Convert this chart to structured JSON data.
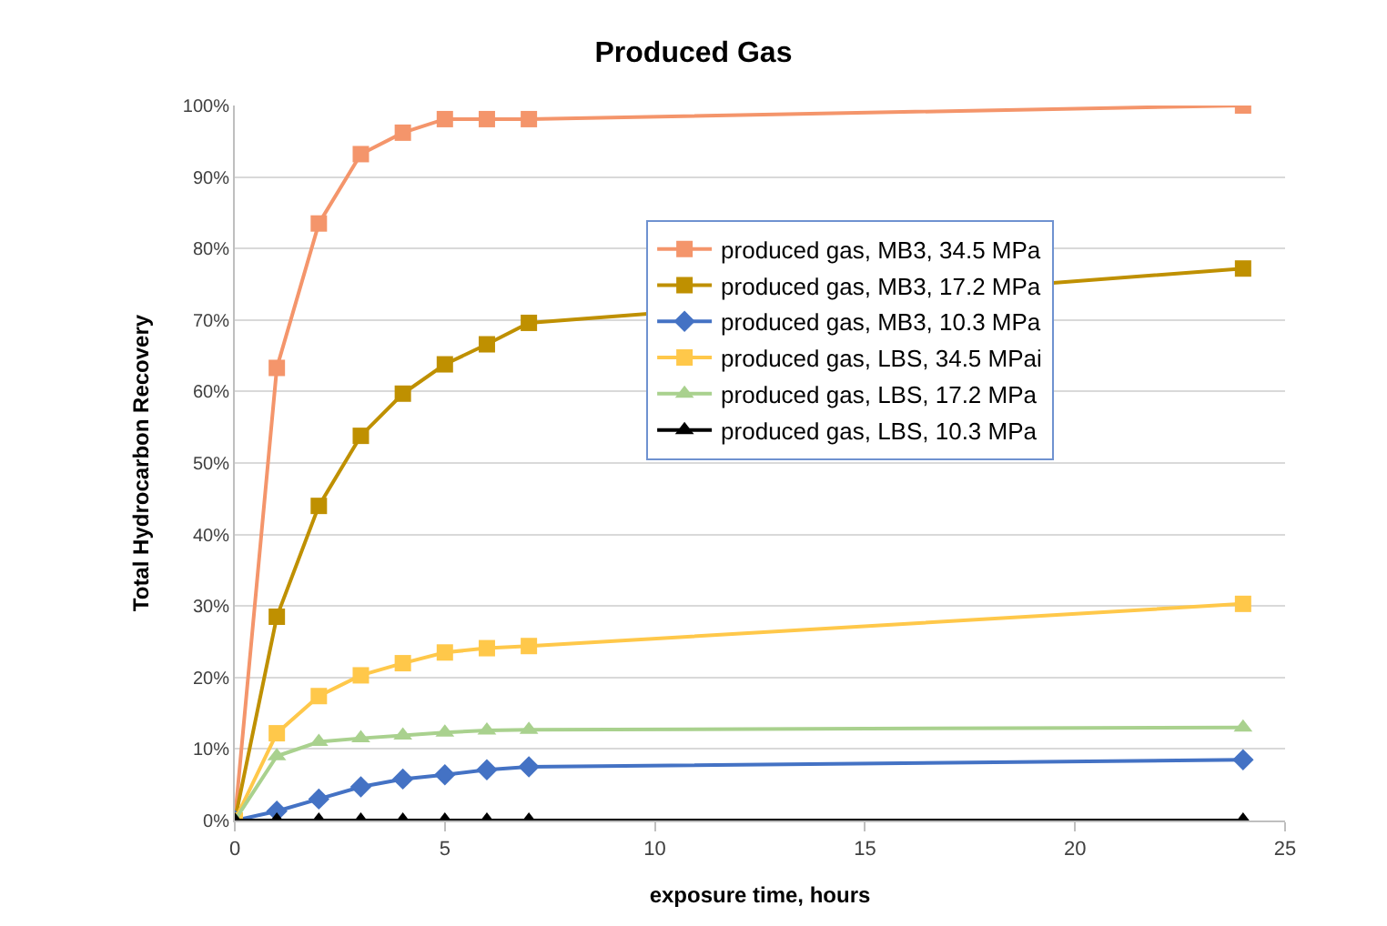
{
  "chart_data": {
    "type": "line",
    "title": "Produced Gas",
    "xlabel": "exposure time, hours",
    "ylabel": "Total Hydrocarbon Recovery",
    "x": [
      0,
      1,
      2,
      3,
      4,
      5,
      6,
      7,
      24
    ],
    "series": [
      {
        "name": "produced gas, MB3, 34.5 MPa",
        "color": "#f4956b",
        "marker": "square",
        "values": [
          0,
          63.3,
          83.5,
          93.2,
          96.2,
          98.1,
          98.1,
          98.1,
          100
        ]
      },
      {
        "name": "produced gas, MB3, 17.2 MPa",
        "color": "#bf9000",
        "marker": "square",
        "values": [
          0,
          28.5,
          44,
          53.8,
          59.7,
          63.8,
          66.6,
          69.6,
          77.2
        ]
      },
      {
        "name": "produced gas, MB3, 10.3 MPa",
        "color": "#4472c4",
        "marker": "diamond",
        "values": [
          0,
          1.3,
          3,
          4.7,
          5.8,
          6.4,
          7.1,
          7.5,
          8.5
        ]
      },
      {
        "name": "produced gas, LBS, 34.5 MPai",
        "color": "#ffc84a",
        "marker": "square",
        "values": [
          0,
          12.2,
          17.4,
          20.3,
          22,
          23.5,
          24.1,
          24.4,
          30.3
        ]
      },
      {
        "name": "produced gas, LBS, 17.2 MPa",
        "color": "#a9d18e",
        "marker": "triangle",
        "values": [
          0,
          9,
          11,
          11.5,
          11.9,
          12.3,
          12.6,
          12.7,
          13
        ]
      },
      {
        "name": "produced gas, LBS, 10.3 MPa",
        "color": "#000000",
        "marker": "triangle",
        "values": [
          0,
          0,
          0,
          0,
          0,
          0,
          0,
          0,
          0
        ]
      }
    ],
    "xlim": [
      0,
      25
    ],
    "xticks": [
      0,
      5,
      10,
      15,
      20,
      25
    ],
    "ylim": [
      0,
      100
    ],
    "yticks": [
      {
        "value": 0,
        "label": "0%"
      },
      {
        "value": 10,
        "label": "10%"
      },
      {
        "value": 20,
        "label": "20%"
      },
      {
        "value": 30,
        "label": "30%"
      },
      {
        "value": 40,
        "label": "40%"
      },
      {
        "value": 50,
        "label": "50%"
      },
      {
        "value": 60,
        "label": "60%"
      },
      {
        "value": 70,
        "label": "70%"
      },
      {
        "value": 80,
        "label": "80%"
      },
      {
        "value": 90,
        "label": "90%"
      },
      {
        "value": 100,
        "label": "100%"
      }
    ],
    "grid": "y",
    "legend": "right",
    "line_style": "solid"
  }
}
